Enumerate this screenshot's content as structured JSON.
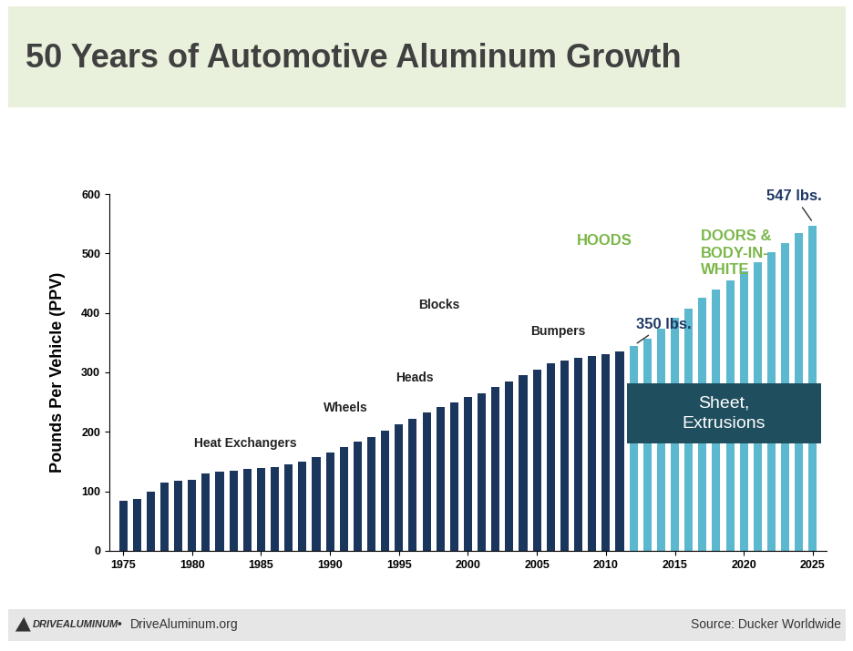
{
  "chart_data": {
    "type": "bar",
    "title": "50 Years of Automotive Aluminum Growth",
    "y_label": "Pounds Per Vehicle (PPV)",
    "x": [
      1975,
      1976,
      1977,
      1978,
      1979,
      1980,
      1981,
      1982,
      1983,
      1984,
      1985,
      1986,
      1987,
      1988,
      1989,
      1990,
      1991,
      1992,
      1993,
      1994,
      1995,
      1996,
      1997,
      1998,
      1999,
      2000,
      2001,
      2002,
      2003,
      2004,
      2005,
      2006,
      2007,
      2008,
      2009,
      2010,
      2011,
      2012,
      2013,
      2014,
      2015,
      2016,
      2017,
      2018,
      2019,
      2020,
      2021,
      2022,
      2023,
      2024,
      2025
    ],
    "values": [
      84,
      87,
      100,
      115,
      118,
      120,
      130,
      133,
      135,
      137,
      139,
      140,
      145,
      150,
      157,
      165,
      175,
      183,
      192,
      202,
      212,
      222,
      232,
      242,
      250,
      258,
      265,
      275,
      285,
      295,
      305,
      315,
      320,
      325,
      327,
      330,
      335,
      345,
      357,
      373,
      392,
      407,
      425,
      440,
      455,
      470,
      485,
      502,
      518,
      535,
      547
    ],
    "colors": [
      "#1b365d",
      "#1b365d",
      "#1b365d",
      "#1b365d",
      "#1b365d",
      "#1b365d",
      "#1b365d",
      "#1b365d",
      "#1b365d",
      "#1b365d",
      "#1b365d",
      "#1b365d",
      "#1b365d",
      "#1b365d",
      "#1b365d",
      "#1b365d",
      "#1b365d",
      "#1b365d",
      "#1b365d",
      "#1b365d",
      "#1b365d",
      "#1b365d",
      "#1b365d",
      "#1b365d",
      "#1b365d",
      "#1b365d",
      "#1b365d",
      "#1b365d",
      "#1b365d",
      "#1b365d",
      "#1b365d",
      "#1b365d",
      "#1b365d",
      "#1b365d",
      "#1b365d",
      "#1b365d",
      "#1b365d",
      "#5cb8cf",
      "#5cb8cf",
      "#5cb8cf",
      "#5cb8cf",
      "#5cb8cf",
      "#5cb8cf",
      "#5cb8cf",
      "#5cb8cf",
      "#5cb8cf",
      "#5cb8cf",
      "#5cb8cf",
      "#5cb8cf",
      "#5cb8cf",
      "#5cb8cf"
    ],
    "xlim": [
      1974,
      2026
    ],
    "xticks": [
      1975,
      1980,
      1985,
      1990,
      1995,
      2000,
      2005,
      2010,
      2015,
      2020,
      2025
    ],
    "ylim": [
      0,
      600
    ],
    "yticks": [
      0,
      100,
      200,
      300,
      400,
      500,
      600
    ],
    "grid": false,
    "annotations": [
      "Heat Exchangers",
      "Wheels",
      "Heads",
      "Blocks",
      "Bumpers",
      "HOODS",
      "DOORS &\nBODY-IN-\nWHITE",
      "350 lbs.",
      "547 lbs.",
      "Sheet,\nExtrusions",
      "DRIVEALUMINUM",
      "•",
      "DriveAluminum.org",
      "Source: Ducker Worldwide"
    ]
  }
}
